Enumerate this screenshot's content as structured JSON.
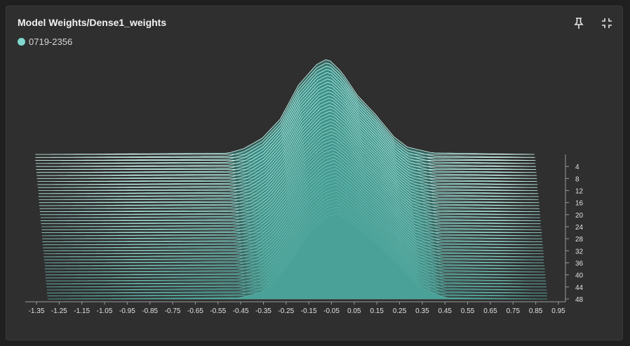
{
  "card": {
    "title": "Model Weights/Dense1_weights",
    "legend": [
      {
        "label": "0719-2356",
        "color": "#7fd8cc"
      }
    ],
    "icons": {
      "pin": "pin-icon",
      "exit_fullscreen": "exit-fullscreen-icon"
    }
  },
  "chart_data": {
    "type": "area",
    "title": "Model Weights/Dense1_weights",
    "chart_style": "histogram ridgeline (offset steps)",
    "series_name": "0719-2356",
    "x_ticks": [
      -1.35,
      -1.25,
      -1.15,
      -1.05,
      -0.95,
      -0.85,
      -0.75,
      -0.65,
      -0.55,
      -0.45,
      -0.35,
      -0.25,
      -0.15,
      -0.05,
      0.05,
      0.15,
      0.25,
      0.35,
      0.45,
      0.55,
      0.65,
      0.75,
      0.85,
      0.95
    ],
    "step_ticks": [
      4,
      8,
      12,
      16,
      20,
      24,
      28,
      32,
      36,
      40,
      44,
      48
    ],
    "x_range": [
      -1.4,
      1.0
    ],
    "steps": {
      "first": 0,
      "last": 48,
      "increment": 1
    },
    "first_step_profile": {
      "x": [
        -1.25,
        -1.05,
        -0.45,
        -0.38,
        -0.3,
        -0.22,
        -0.14,
        -0.06,
        -0.01,
        0.05,
        0.12,
        0.2,
        0.28,
        0.34,
        0.45,
        0.9
      ],
      "y": [
        0.0,
        0.02,
        0.08,
        0.4,
        1.1,
        2.4,
        4.7,
        6.1,
        6.5,
        5.6,
        4.0,
        2.7,
        1.2,
        0.5,
        0.1,
        0.0
      ]
    },
    "last_step_profile": {
      "x": [
        -1.3,
        -1.05,
        -0.45,
        -0.35,
        -0.28,
        -0.22,
        -0.15,
        -0.07,
        -0.02,
        0.05,
        0.15,
        0.25,
        0.34,
        0.4,
        0.45,
        0.85
      ],
      "y": [
        0.0,
        0.02,
        0.1,
        0.5,
        1.6,
        2.9,
        4.5,
        5.6,
        5.8,
        5.0,
        3.8,
        2.3,
        0.8,
        0.4,
        0.1,
        0.0
      ]
    },
    "colors": {
      "fill": "#4aa197",
      "line_front": "#5aaea4",
      "line_back": "#d8fff9"
    }
  }
}
